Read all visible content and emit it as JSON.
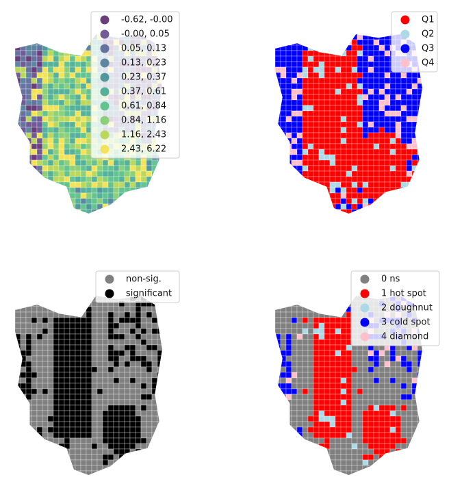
{
  "panels": [
    {
      "legend": [
        {
          "label": "-0.62, -0.00",
          "color": "#6a3d7b"
        },
        {
          "label": "-0.00,  0.05",
          "color": "#715a96"
        },
        {
          "label": "0.05,  0.13",
          "color": "#6672a0"
        },
        {
          "label": "0.13,  0.23",
          "color": "#5d87a1"
        },
        {
          "label": "0.23,  0.37",
          "color": "#50989c"
        },
        {
          "label": "0.37,  0.61",
          "color": "#55b199"
        },
        {
          "label": "0.61,  0.84",
          "color": "#63c48f"
        },
        {
          "label": "0.84,  1.16",
          "color": "#8cd07a"
        },
        {
          "label": "1.16,  2.43",
          "color": "#bcd85c"
        },
        {
          "label": "2.43,  6.22",
          "color": "#f3e35a"
        }
      ]
    },
    {
      "legend": [
        {
          "label": "Q1",
          "color": "#ff0000"
        },
        {
          "label": "Q2",
          "color": "#add8e6"
        },
        {
          "label": "Q3",
          "color": "#0000ff"
        },
        {
          "label": "Q4",
          "color": "#ffc0cb"
        }
      ]
    },
    {
      "legend": [
        {
          "label": "non-sig.",
          "color": "#808080"
        },
        {
          "label": "significant",
          "color": "#000000"
        }
      ]
    },
    {
      "legend": [
        {
          "label": "0 ns",
          "color": "#808080"
        },
        {
          "label": "1 hot spot",
          "color": "#ff0000"
        },
        {
          "label": "2 doughnut",
          "color": "#add8e6"
        },
        {
          "label": "3 cold spot",
          "color": "#0000ff"
        },
        {
          "label": "4 diamond",
          "color": "#ffc0cb"
        }
      ]
    }
  ]
}
